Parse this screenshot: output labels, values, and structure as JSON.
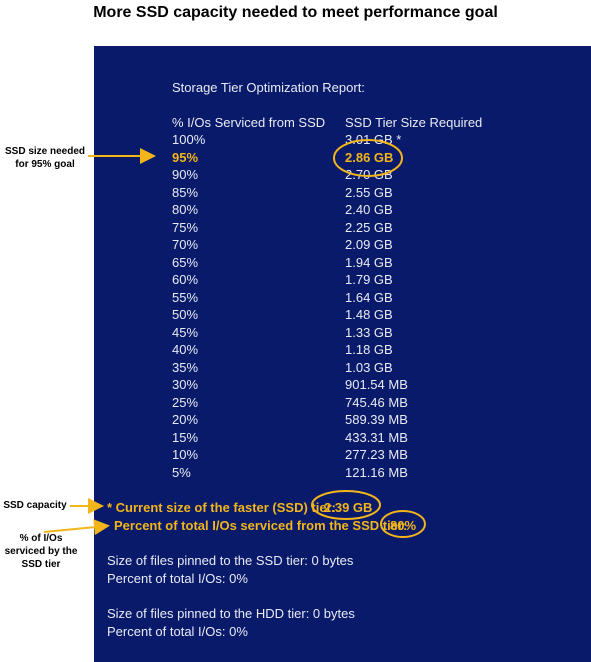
{
  "page_title": "More SSD capacity needed to meet performance goal",
  "report": {
    "title": "Storage Tier Optimization Report:",
    "col_pct": "% I/Os Serviced from SSD",
    "col_size": "SSD Tier Size Required",
    "rows": [
      {
        "pct": "100%",
        "size": "3.01 GB *"
      },
      {
        "pct": "95%",
        "size": "2.86 GB"
      },
      {
        "pct": "90%",
        "size": "2.70 GB"
      },
      {
        "pct": "85%",
        "size": "2.55 GB"
      },
      {
        "pct": "80%",
        "size": "2.40 GB"
      },
      {
        "pct": "75%",
        "size": "2.25 GB"
      },
      {
        "pct": "70%",
        "size": "2.09 GB"
      },
      {
        "pct": "65%",
        "size": "1.94 GB"
      },
      {
        "pct": "60%",
        "size": "1.79 GB"
      },
      {
        "pct": "55%",
        "size": "1.64 GB"
      },
      {
        "pct": "50%",
        "size": "1.48 GB"
      },
      {
        "pct": "45%",
        "size": "1.33 GB"
      },
      {
        "pct": "40%",
        "size": "1.18 GB"
      },
      {
        "pct": "35%",
        "size": "1.03 GB"
      },
      {
        "pct": "30%",
        "size": "901.54 MB"
      },
      {
        "pct": "25%",
        "size": "745.46 MB"
      },
      {
        "pct": "20%",
        "size": "589.39 MB"
      },
      {
        "pct": "15%",
        "size": "433.31 MB"
      },
      {
        "pct": "10%",
        "size": "277.23 MB"
      },
      {
        "pct": "5%",
        "size": "121.16 MB"
      }
    ],
    "current_size_label": "* Current size of the faster (SSD) tier:",
    "current_size_value": "2.39 GB",
    "percent_serviced_label": "Percent of total I/Os serviced from the SSD tier:",
    "percent_serviced_value": "80%",
    "ssd_pinned_line": "Size of files pinned to the SSD tier: 0 bytes",
    "ssd_pinned_pct": "Percent of total I/Os: 0%",
    "hdd_pinned_line": "Size of files pinned to the HDD tier: 0 bytes",
    "hdd_pinned_pct": "Percent of total I/Os: 0%"
  },
  "annotations": {
    "ssd_size_needed": "SSD size needed for 95% goal",
    "ssd_capacity": "SSD capacity",
    "pct_serviced": "% of I/Os serviced by the SSD tier"
  },
  "colors": {
    "panel": "#0a1a6a",
    "highlight": "#f2b51a",
    "text": "#e8ebf5"
  }
}
